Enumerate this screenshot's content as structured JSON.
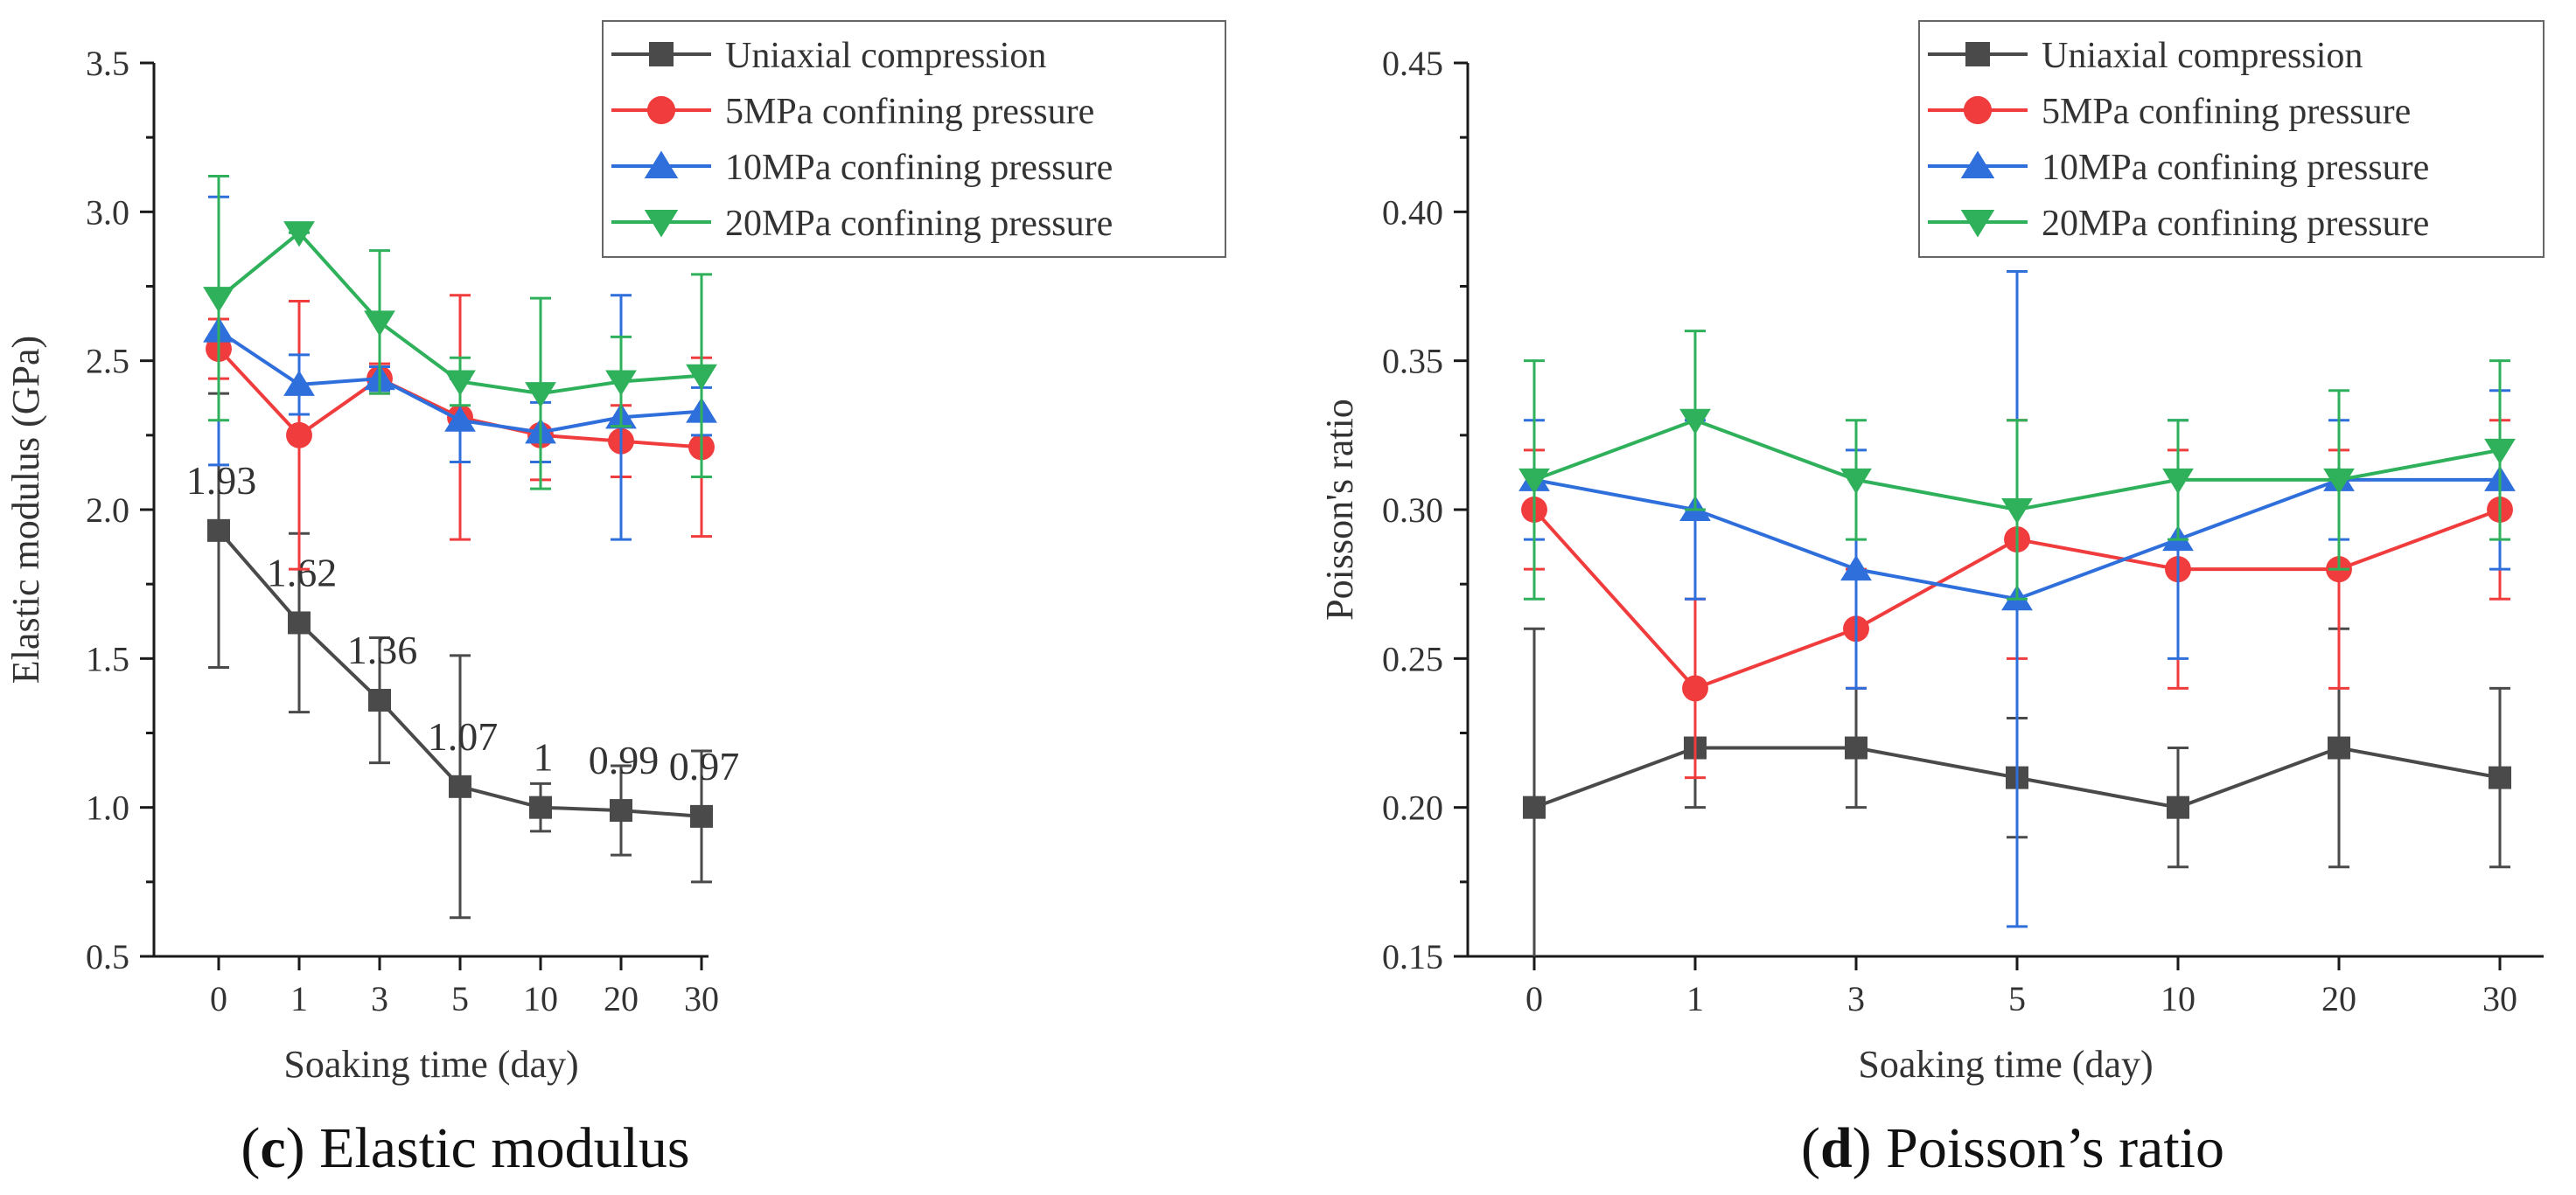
{
  "chart_data": [
    {
      "id": "panel-c",
      "type": "line",
      "panel_label": "c",
      "caption": "Elastic modulus",
      "xlabel": "Soaking time (day)",
      "ylabel": "Elastic modulus (GPa)",
      "categories": [
        "0",
        "1",
        "3",
        "5",
        "10",
        "20",
        "30"
      ],
      "ylim": [
        0.5,
        3.5
      ],
      "yticks": [
        "0.5",
        "1.0",
        "1.5",
        "2.0",
        "2.5",
        "3.0",
        "3.5"
      ],
      "legend_position": "top-right",
      "series": [
        {
          "name": "Uniaxial compression",
          "color": "#4a4a4a",
          "marker": "square",
          "values": [
            1.93,
            1.62,
            1.36,
            1.07,
            1.0,
            0.99,
            0.97
          ],
          "err_low": [
            1.47,
            1.32,
            1.15,
            0.63,
            0.92,
            0.84,
            0.75
          ],
          "err_high": [
            2.39,
            1.92,
            1.57,
            1.51,
            1.08,
            1.14,
            1.19
          ],
          "data_labels": [
            "1.93",
            "1.62",
            "1.36",
            "1.07",
            "1",
            "0.99",
            "0.97"
          ]
        },
        {
          "name": "5MPa confining pressure",
          "color": "#f03c3c",
          "marker": "circle",
          "values": [
            2.54,
            2.25,
            2.44,
            2.31,
            2.25,
            2.23,
            2.21
          ],
          "err_low": [
            2.44,
            1.8,
            2.39,
            1.9,
            2.1,
            2.11,
            1.91
          ],
          "err_high": [
            2.64,
            2.7,
            2.49,
            2.72,
            2.4,
            2.35,
            2.51
          ]
        },
        {
          "name": "10MPa confining pressure",
          "color": "#2f6fdc",
          "marker": "triangle-up",
          "values": [
            2.6,
            2.42,
            2.44,
            2.3,
            2.26,
            2.31,
            2.33
          ],
          "err_low": [
            2.15,
            2.32,
            2.4,
            2.16,
            2.16,
            1.9,
            2.25
          ],
          "err_high": [
            3.05,
            2.52,
            2.48,
            2.44,
            2.36,
            2.72,
            2.41
          ]
        },
        {
          "name": "20MPa confining pressure",
          "color": "#2fb05a",
          "marker": "triangle-down",
          "values": [
            2.71,
            2.93,
            2.63,
            2.43,
            2.39,
            2.43,
            2.45
          ],
          "err_low": [
            2.3,
            2.93,
            2.39,
            2.35,
            2.07,
            2.28,
            2.11
          ],
          "err_high": [
            3.12,
            2.93,
            2.87,
            2.51,
            2.71,
            2.58,
            2.79
          ]
        }
      ]
    },
    {
      "id": "panel-d",
      "type": "line",
      "panel_label": "d",
      "caption": "Poisson’s ratio",
      "xlabel": "Soaking time (day)",
      "ylabel": "Poisson's ratio",
      "categories": [
        "0",
        "1",
        "3",
        "5",
        "10",
        "20",
        "30"
      ],
      "ylim": [
        0.15,
        0.45
      ],
      "yticks": [
        "0.15",
        "0.20",
        "0.25",
        "0.30",
        "0.35",
        "0.40",
        "0.45"
      ],
      "legend_position": "top-right",
      "series": [
        {
          "name": "Uniaxial compression",
          "color": "#4a4a4a",
          "marker": "square",
          "values": [
            0.2,
            0.22,
            0.22,
            0.21,
            0.2,
            0.22,
            0.21
          ],
          "err_low": [
            0.14,
            0.2,
            0.2,
            0.19,
            0.18,
            0.18,
            0.18
          ],
          "err_high": [
            0.26,
            0.24,
            0.24,
            0.23,
            0.22,
            0.26,
            0.24
          ]
        },
        {
          "name": "5MPa confining pressure",
          "color": "#f03c3c",
          "marker": "circle",
          "values": [
            0.3,
            0.24,
            0.26,
            0.29,
            0.28,
            0.28,
            0.3
          ],
          "err_low": [
            0.28,
            0.21,
            0.24,
            0.25,
            0.24,
            0.24,
            0.27
          ],
          "err_high": [
            0.32,
            0.27,
            0.28,
            0.33,
            0.32,
            0.32,
            0.33
          ]
        },
        {
          "name": "10MPa confining pressure",
          "color": "#2f6fdc",
          "marker": "triangle-up",
          "values": [
            0.31,
            0.3,
            0.28,
            0.27,
            0.29,
            0.31,
            0.31
          ],
          "err_low": [
            0.29,
            0.27,
            0.24,
            0.16,
            0.25,
            0.29,
            0.28
          ],
          "err_high": [
            0.33,
            0.33,
            0.32,
            0.38,
            0.33,
            0.33,
            0.34
          ]
        },
        {
          "name": "20MPa confining pressure",
          "color": "#2fb05a",
          "marker": "triangle-down",
          "values": [
            0.31,
            0.33,
            0.31,
            0.3,
            0.31,
            0.31,
            0.32
          ],
          "err_low": [
            0.27,
            0.3,
            0.29,
            0.27,
            0.29,
            0.28,
            0.29
          ],
          "err_high": [
            0.35,
            0.36,
            0.33,
            0.33,
            0.33,
            0.34,
            0.35
          ]
        }
      ]
    }
  ]
}
